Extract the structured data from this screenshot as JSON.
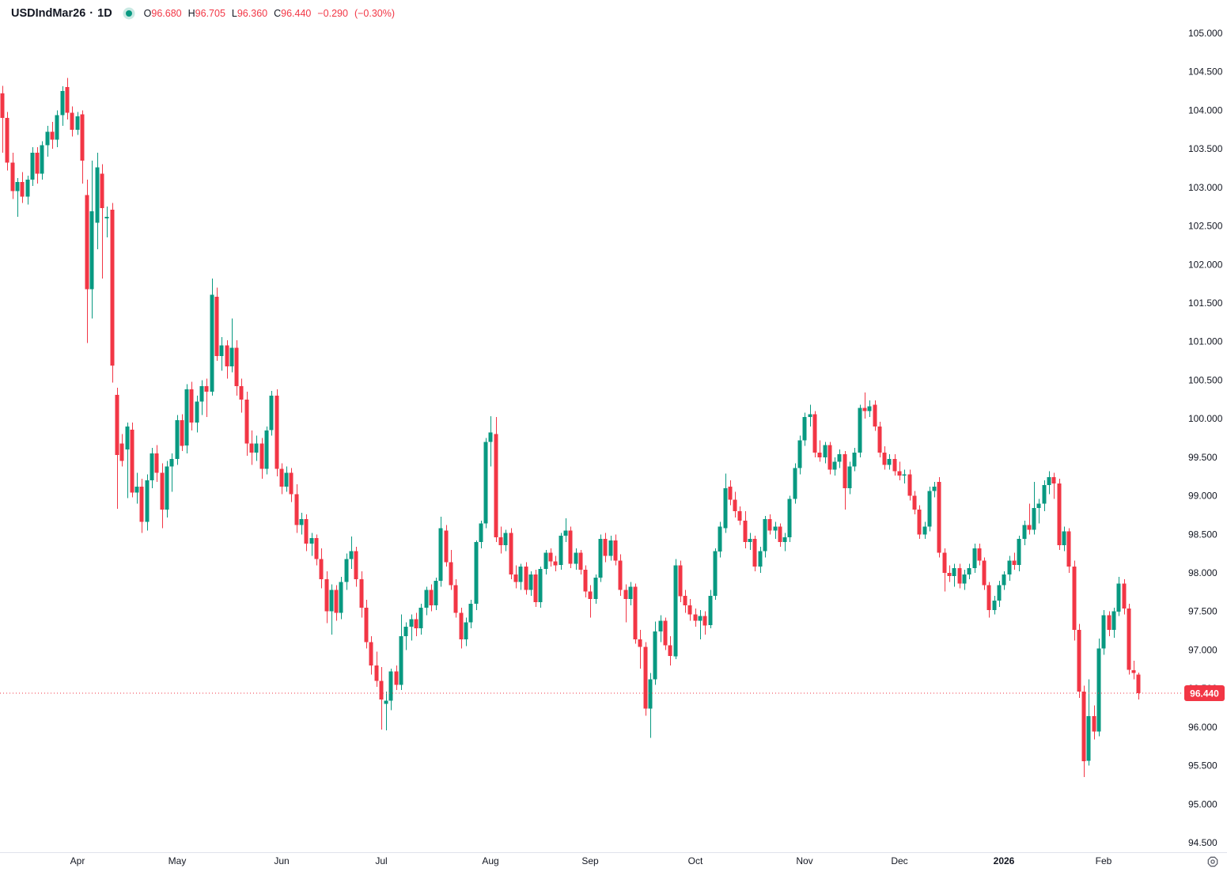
{
  "header": {
    "symbol": "USDIndMar26",
    "separator": "·",
    "interval": "1D",
    "ohlc": {
      "o_label": "O",
      "o_value": "96.680",
      "h_label": "H",
      "h_value": "96.705",
      "l_label": "L",
      "l_value": "96.360",
      "c_label": "C",
      "c_value": "96.440",
      "change": "−0.290",
      "change_pct": "(−0.30%)"
    }
  },
  "colors": {
    "up": "#089981",
    "down": "#f23645",
    "text": "#131722",
    "value_text": "#f23645",
    "last_price_bg": "#f23645",
    "last_price_line": "#f23645",
    "separator_line": "#e0e3eb",
    "icon_gray": "#5d606b",
    "status_dot": "#089981",
    "status_dot_ring": "rgba(8,153,129,0.22)"
  },
  "icons": {
    "status_dot": "filled-circle",
    "price_scale_settings": "octagon-with-dot"
  },
  "price_axis": {
    "labels": [
      "105.000",
      "104.500",
      "104.000",
      "103.500",
      "103.000",
      "102.500",
      "102.000",
      "101.500",
      "101.000",
      "100.500",
      "100.000",
      "99.500",
      "99.000",
      "98.500",
      "98.000",
      "97.500",
      "97.000",
      "96.500",
      "96.000",
      "95.500",
      "95.000",
      "94.500"
    ],
    "last_price_label": "96.440"
  },
  "time_axis": {
    "labels": [
      "Apr",
      "May",
      "Jun",
      "Jul",
      "Aug",
      "Sep",
      "Oct",
      "Nov",
      "Dec",
      "2026",
      "Feb"
    ]
  },
  "chart_data": {
    "type": "candlestick",
    "title": "USDIndMar26 1D",
    "xlabel": "",
    "ylabel": "",
    "y_range": [
      94.5,
      105.0
    ],
    "y_tick_step": 0.5,
    "grid": false,
    "legend_position": "top-left",
    "last_price": 96.44,
    "last_price_style": "dotted-red-line-with-tag",
    "month_ticks": [
      {
        "label": "Apr",
        "i": 15
      },
      {
        "label": "May",
        "i": 35
      },
      {
        "label": "Jun",
        "i": 56
      },
      {
        "label": "Jul",
        "i": 76
      },
      {
        "label": "Aug",
        "i": 98
      },
      {
        "label": "Sep",
        "i": 118
      },
      {
        "label": "Oct",
        "i": 139
      },
      {
        "label": "Nov",
        "i": 161
      },
      {
        "label": "Dec",
        "i": 180
      },
      {
        "label": "2026",
        "i": 201,
        "bold": true
      },
      {
        "label": "Feb",
        "i": 221
      }
    ],
    "ohlc": [
      [
        104.22,
        104.32,
        103.45,
        103.9
      ],
      [
        103.9,
        103.98,
        103.22,
        103.32
      ],
      [
        103.32,
        103.45,
        102.85,
        102.95
      ],
      [
        102.95,
        103.12,
        102.62,
        103.07
      ],
      [
        103.07,
        103.2,
        102.8,
        102.88
      ],
      [
        102.88,
        103.15,
        102.78,
        103.1
      ],
      [
        103.1,
        103.52,
        103.02,
        103.45
      ],
      [
        103.45,
        103.52,
        103.05,
        103.18
      ],
      [
        103.18,
        103.6,
        103.1,
        103.55
      ],
      [
        103.55,
        103.8,
        103.4,
        103.72
      ],
      [
        103.72,
        103.85,
        103.5,
        103.62
      ],
      [
        103.62,
        104.0,
        103.52,
        103.94
      ],
      [
        103.94,
        104.31,
        103.8,
        104.25
      ],
      [
        104.3,
        104.42,
        103.88,
        103.97
      ],
      [
        103.97,
        104.05,
        103.66,
        103.75
      ],
      [
        103.75,
        103.98,
        103.68,
        103.92
      ],
      [
        103.95,
        104.0,
        103.05,
        103.35
      ],
      [
        102.9,
        103.1,
        100.98,
        101.68
      ],
      [
        101.68,
        103.35,
        101.3,
        102.69
      ],
      [
        102.54,
        103.45,
        102.2,
        103.26
      ],
      [
        103.18,
        103.3,
        101.82,
        102.73
      ],
      [
        102.6,
        102.75,
        102.35,
        102.62
      ],
      [
        102.71,
        102.8,
        100.47,
        100.69
      ],
      [
        100.31,
        100.4,
        98.83,
        99.53
      ],
      [
        99.68,
        99.8,
        99.38,
        99.45
      ],
      [
        99.6,
        99.95,
        98.97,
        99.9
      ],
      [
        99.86,
        99.95,
        98.98,
        99.04
      ],
      [
        99.04,
        99.3,
        98.9,
        99.12
      ],
      [
        99.12,
        99.22,
        98.52,
        98.66
      ],
      [
        98.66,
        99.28,
        98.55,
        99.2
      ],
      [
        99.2,
        99.62,
        99.1,
        99.55
      ],
      [
        99.55,
        99.66,
        99.18,
        99.3
      ],
      [
        99.3,
        99.42,
        98.58,
        98.82
      ],
      [
        98.82,
        99.45,
        98.72,
        99.38
      ],
      [
        99.38,
        99.55,
        99.05,
        99.48
      ],
      [
        99.48,
        100.05,
        99.4,
        99.98
      ],
      [
        99.98,
        100.06,
        99.58,
        99.65
      ],
      [
        99.65,
        100.45,
        99.55,
        100.38
      ],
      [
        100.38,
        100.48,
        99.85,
        99.95
      ],
      [
        99.95,
        100.3,
        99.82,
        100.22
      ],
      [
        100.22,
        100.5,
        100.05,
        100.42
      ],
      [
        100.42,
        100.52,
        100.02,
        100.35
      ],
      [
        100.35,
        101.82,
        100.3,
        101.61
      ],
      [
        101.58,
        101.7,
        100.75,
        100.81
      ],
      [
        100.81,
        101.06,
        100.62,
        100.95
      ],
      [
        100.95,
        101.02,
        100.52,
        100.68
      ],
      [
        100.68,
        101.3,
        100.6,
        100.92
      ],
      [
        100.92,
        101.02,
        100.3,
        100.42
      ],
      [
        100.42,
        100.52,
        100.08,
        100.25
      ],
      [
        100.25,
        100.35,
        99.52,
        99.68
      ],
      [
        99.68,
        99.85,
        99.4,
        99.56
      ],
      [
        99.56,
        99.78,
        99.45,
        99.68
      ],
      [
        99.68,
        99.75,
        99.22,
        99.35
      ],
      [
        99.35,
        99.9,
        99.28,
        99.85
      ],
      [
        99.85,
        100.36,
        99.78,
        100.3
      ],
      [
        100.3,
        100.38,
        99.25,
        99.35
      ],
      [
        99.35,
        99.42,
        99.02,
        99.12
      ],
      [
        99.12,
        99.38,
        99.05,
        99.3
      ],
      [
        99.3,
        99.36,
        98.92,
        99.02
      ],
      [
        99.02,
        99.15,
        98.52,
        98.62
      ],
      [
        98.62,
        98.78,
        98.5,
        98.7
      ],
      [
        98.7,
        98.76,
        98.28,
        98.38
      ],
      [
        98.38,
        98.52,
        98.22,
        98.45
      ],
      [
        98.45,
        98.5,
        98.1,
        98.18
      ],
      [
        98.18,
        98.32,
        97.8,
        97.92
      ],
      [
        97.92,
        98.02,
        97.35,
        97.5
      ],
      [
        97.5,
        97.85,
        97.2,
        97.78
      ],
      [
        97.78,
        97.84,
        97.38,
        97.48
      ],
      [
        97.48,
        97.95,
        97.4,
        97.88
      ],
      [
        97.88,
        98.25,
        97.78,
        98.18
      ],
      [
        98.18,
        98.47,
        98.05,
        98.28
      ],
      [
        98.28,
        98.34,
        97.82,
        97.92
      ],
      [
        97.92,
        98.02,
        97.42,
        97.55
      ],
      [
        97.55,
        97.65,
        97.02,
        97.1
      ],
      [
        97.1,
        97.18,
        96.68,
        96.8
      ],
      [
        96.8,
        96.98,
        96.52,
        96.6
      ],
      [
        96.6,
        96.78,
        95.97,
        96.36
      ],
      [
        96.3,
        96.46,
        95.96,
        96.34
      ],
      [
        96.34,
        96.76,
        96.22,
        96.72
      ],
      [
        96.72,
        96.8,
        96.48,
        96.55
      ],
      [
        96.55,
        97.46,
        96.48,
        97.18
      ],
      [
        97.18,
        97.36,
        97.0,
        97.3
      ],
      [
        97.3,
        97.46,
        97.12,
        97.4
      ],
      [
        97.4,
        97.48,
        97.18,
        97.28
      ],
      [
        97.28,
        97.6,
        97.2,
        97.55
      ],
      [
        97.55,
        97.82,
        97.45,
        97.78
      ],
      [
        97.78,
        97.85,
        97.5,
        97.58
      ],
      [
        97.58,
        97.94,
        97.52,
        97.9
      ],
      [
        97.9,
        98.73,
        97.82,
        98.58
      ],
      [
        98.55,
        98.62,
        98.08,
        98.14
      ],
      [
        98.14,
        98.3,
        97.78,
        97.84
      ],
      [
        97.84,
        97.92,
        97.42,
        97.48
      ],
      [
        97.48,
        97.55,
        97.02,
        97.14
      ],
      [
        97.14,
        97.42,
        97.05,
        97.36
      ],
      [
        97.36,
        97.65,
        97.28,
        97.6
      ],
      [
        97.6,
        98.42,
        97.52,
        98.4
      ],
      [
        98.4,
        98.68,
        98.32,
        98.64
      ],
      [
        98.64,
        99.75,
        98.58,
        99.7
      ],
      [
        99.7,
        100.03,
        99.38,
        99.82
      ],
      [
        99.8,
        100.02,
        98.4,
        98.46
      ],
      [
        98.46,
        98.6,
        98.25,
        98.36
      ],
      [
        98.36,
        98.56,
        98.28,
        98.52
      ],
      [
        98.52,
        98.58,
        97.92,
        97.98
      ],
      [
        97.98,
        98.1,
        97.8,
        97.88
      ],
      [
        97.88,
        98.12,
        97.78,
        98.08
      ],
      [
        98.08,
        98.14,
        97.72,
        97.78
      ],
      [
        97.78,
        98.02,
        97.7,
        97.98
      ],
      [
        97.98,
        98.04,
        97.56,
        97.62
      ],
      [
        97.62,
        98.08,
        97.55,
        98.05
      ],
      [
        98.05,
        98.3,
        97.98,
        98.26
      ],
      [
        98.26,
        98.32,
        98.08,
        98.15
      ],
      [
        98.15,
        98.22,
        98.02,
        98.1
      ],
      [
        98.1,
        98.52,
        98.04,
        98.48
      ],
      [
        98.48,
        98.71,
        98.4,
        98.55
      ],
      [
        98.55,
        98.6,
        98.06,
        98.12
      ],
      [
        98.12,
        98.32,
        98.04,
        98.26
      ],
      [
        98.26,
        98.3,
        97.98,
        98.04
      ],
      [
        98.04,
        98.1,
        97.68,
        97.76
      ],
      [
        97.76,
        97.84,
        97.42,
        97.66
      ],
      [
        97.66,
        97.98,
        97.6,
        97.94
      ],
      [
        97.94,
        98.5,
        97.88,
        98.44
      ],
      [
        98.44,
        98.52,
        98.14,
        98.22
      ],
      [
        98.22,
        98.48,
        98.16,
        98.42
      ],
      [
        98.42,
        98.5,
        98.1,
        98.16
      ],
      [
        98.16,
        98.24,
        97.7,
        97.78
      ],
      [
        97.78,
        97.85,
        97.36,
        97.66
      ],
      [
        97.66,
        97.88,
        97.58,
        97.82
      ],
      [
        97.82,
        97.86,
        97.08,
        97.14
      ],
      [
        97.14,
        97.26,
        96.76,
        97.04
      ],
      [
        97.04,
        97.1,
        96.15,
        96.24
      ],
      [
        96.24,
        96.7,
        95.86,
        96.62
      ],
      [
        96.62,
        97.37,
        96.55,
        97.24
      ],
      [
        97.24,
        97.45,
        97.1,
        97.38
      ],
      [
        97.38,
        97.42,
        97.0,
        97.06
      ],
      [
        97.06,
        97.18,
        96.8,
        96.92
      ],
      [
        96.92,
        98.18,
        96.88,
        98.1
      ],
      [
        98.1,
        98.16,
        97.62,
        97.7
      ],
      [
        97.7,
        97.78,
        97.48,
        97.58
      ],
      [
        97.58,
        97.66,
        97.38,
        97.46
      ],
      [
        97.46,
        97.54,
        97.3,
        97.38
      ],
      [
        97.38,
        97.52,
        97.14,
        97.44
      ],
      [
        97.44,
        97.5,
        97.2,
        97.32
      ],
      [
        97.32,
        97.78,
        97.28,
        97.7
      ],
      [
        97.7,
        98.32,
        97.65,
        98.28
      ],
      [
        98.28,
        98.66,
        98.2,
        98.6
      ],
      [
        98.58,
        99.29,
        98.52,
        99.1
      ],
      [
        99.12,
        99.2,
        98.88,
        98.95
      ],
      [
        98.95,
        99.05,
        98.72,
        98.8
      ],
      [
        98.8,
        98.86,
        98.62,
        98.68
      ],
      [
        98.68,
        98.8,
        98.32,
        98.4
      ],
      [
        98.4,
        98.52,
        98.3,
        98.44
      ],
      [
        98.44,
        98.48,
        98.02,
        98.08
      ],
      [
        98.08,
        98.34,
        98.0,
        98.28
      ],
      [
        98.28,
        98.74,
        98.2,
        98.7
      ],
      [
        98.7,
        98.76,
        98.5,
        98.55
      ],
      [
        98.55,
        98.66,
        98.44,
        98.6
      ],
      [
        98.6,
        98.64,
        98.34,
        98.4
      ],
      [
        98.4,
        98.52,
        98.28,
        98.46
      ],
      [
        98.46,
        99.0,
        98.4,
        98.96
      ],
      [
        98.96,
        99.42,
        98.9,
        99.36
      ],
      [
        99.36,
        99.78,
        99.28,
        99.72
      ],
      [
        99.72,
        100.08,
        99.65,
        100.02
      ],
      [
        100.02,
        100.18,
        99.9,
        100.06
      ],
      [
        100.06,
        100.1,
        99.5,
        99.56
      ],
      [
        99.56,
        99.72,
        99.44,
        99.5
      ],
      [
        99.5,
        99.7,
        99.42,
        99.66
      ],
      [
        99.66,
        99.7,
        99.28,
        99.34
      ],
      [
        99.34,
        99.5,
        99.26,
        99.44
      ],
      [
        99.44,
        99.6,
        99.36,
        99.54
      ],
      [
        99.54,
        99.58,
        98.82,
        99.1
      ],
      [
        99.1,
        99.44,
        99.02,
        99.38
      ],
      [
        99.38,
        99.62,
        99.32,
        99.56
      ],
      [
        99.56,
        100.18,
        99.5,
        100.14
      ],
      [
        100.14,
        100.34,
        100.0,
        100.1
      ],
      [
        100.1,
        100.24,
        100.02,
        100.16
      ],
      [
        100.18,
        100.24,
        99.84,
        99.9
      ],
      [
        99.9,
        99.96,
        99.5,
        99.56
      ],
      [
        99.56,
        99.64,
        99.34,
        99.4
      ],
      [
        99.4,
        99.54,
        99.34,
        99.48
      ],
      [
        99.48,
        99.54,
        99.26,
        99.32
      ],
      [
        99.32,
        99.44,
        99.2,
        99.26
      ],
      [
        99.26,
        99.34,
        99.16,
        99.28
      ],
      [
        99.28,
        99.34,
        98.94,
        99.0
      ],
      [
        99.0,
        99.06,
        98.76,
        98.82
      ],
      [
        98.82,
        98.88,
        98.44,
        98.5
      ],
      [
        98.5,
        98.66,
        98.44,
        98.6
      ],
      [
        98.6,
        99.12,
        98.54,
        99.06
      ],
      [
        99.06,
        99.18,
        98.98,
        99.12
      ],
      [
        99.18,
        99.24,
        98.2,
        98.26
      ],
      [
        98.26,
        98.32,
        97.76,
        98.0
      ],
      [
        98.0,
        98.1,
        97.88,
        97.96
      ],
      [
        97.96,
        98.12,
        97.82,
        98.06
      ],
      [
        98.06,
        98.12,
        97.8,
        97.86
      ],
      [
        97.86,
        98.04,
        97.78,
        97.98
      ],
      [
        97.98,
        98.12,
        97.92,
        98.06
      ],
      [
        98.06,
        98.38,
        98.0,
        98.32
      ],
      [
        98.32,
        98.38,
        98.1,
        98.16
      ],
      [
        98.16,
        98.2,
        97.78,
        97.84
      ],
      [
        97.84,
        97.88,
        97.42,
        97.52
      ],
      [
        97.52,
        97.7,
        97.46,
        97.64
      ],
      [
        97.64,
        97.9,
        97.56,
        97.84
      ],
      [
        97.84,
        98.02,
        97.78,
        97.98
      ],
      [
        97.98,
        98.22,
        97.9,
        98.16
      ],
      [
        98.16,
        98.26,
        98.04,
        98.1
      ],
      [
        98.1,
        98.48,
        98.02,
        98.44
      ],
      [
        98.44,
        98.68,
        98.36,
        98.62
      ],
      [
        98.62,
        98.9,
        98.5,
        98.56
      ],
      [
        98.56,
        99.18,
        98.5,
        98.84
      ],
      [
        98.84,
        98.96,
        98.64,
        98.9
      ],
      [
        98.9,
        99.2,
        98.8,
        99.14
      ],
      [
        99.14,
        99.32,
        99.02,
        99.24
      ],
      [
        99.24,
        99.3,
        98.96,
        99.16
      ],
      [
        99.16,
        99.22,
        98.3,
        98.36
      ],
      [
        98.36,
        98.6,
        98.28,
        98.54
      ],
      [
        98.54,
        98.58,
        98.0,
        98.08
      ],
      [
        98.08,
        98.16,
        97.12,
        97.26
      ],
      [
        97.26,
        97.34,
        96.38,
        96.46
      ],
      [
        96.46,
        96.54,
        95.35,
        95.56
      ],
      [
        95.56,
        96.62,
        95.5,
        96.14
      ],
      [
        96.14,
        96.28,
        95.84,
        95.94
      ],
      [
        95.94,
        97.15,
        95.88,
        97.02
      ],
      [
        97.02,
        97.52,
        96.94,
        97.45
      ],
      [
        97.45,
        97.5,
        97.18,
        97.26
      ],
      [
        97.26,
        97.55,
        97.16,
        97.5
      ],
      [
        97.5,
        97.95,
        97.44,
        97.86
      ],
      [
        97.86,
        97.92,
        97.46,
        97.54
      ],
      [
        97.54,
        97.6,
        96.68,
        96.74
      ],
      [
        96.74,
        96.86,
        96.62,
        96.7
      ],
      [
        96.68,
        96.705,
        96.36,
        96.44
      ]
    ]
  }
}
